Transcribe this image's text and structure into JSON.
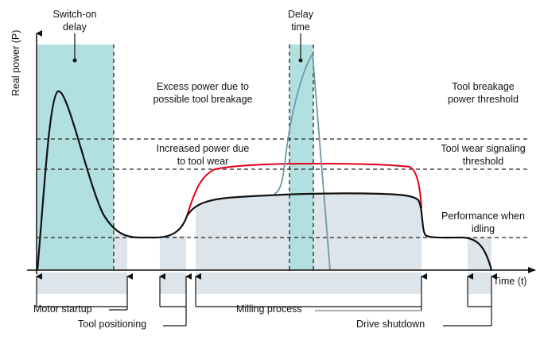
{
  "axes": {
    "y_label": "Real power (P)",
    "x_label": "Time (t)"
  },
  "annotations": {
    "switch_on_delay": [
      "Switch-on",
      "delay"
    ],
    "delay_time": [
      "Delay",
      "time"
    ],
    "excess_power": [
      "Excess power due to",
      "possible tool breakage"
    ],
    "increased_power": [
      "Increased power due",
      "to tool wear"
    ],
    "tool_breakage_threshold": [
      "Tool breakage",
      "power threshold"
    ],
    "tool_wear_threshold": [
      "Tool wear signaling",
      "threshold"
    ],
    "idling": [
      "Performance when",
      "idling"
    ]
  },
  "phases": {
    "motor_startup": "Motor startup",
    "tool_positioning": "Tool positioning",
    "milling_process": "Milling process",
    "drive_shutdown": "Drive shutdown"
  },
  "colors": {
    "teal": "#b2dfdf",
    "grey": "#dde4ea",
    "red": "#e0001b",
    "spike": "#6e9aa6",
    "line": "#111111"
  }
}
